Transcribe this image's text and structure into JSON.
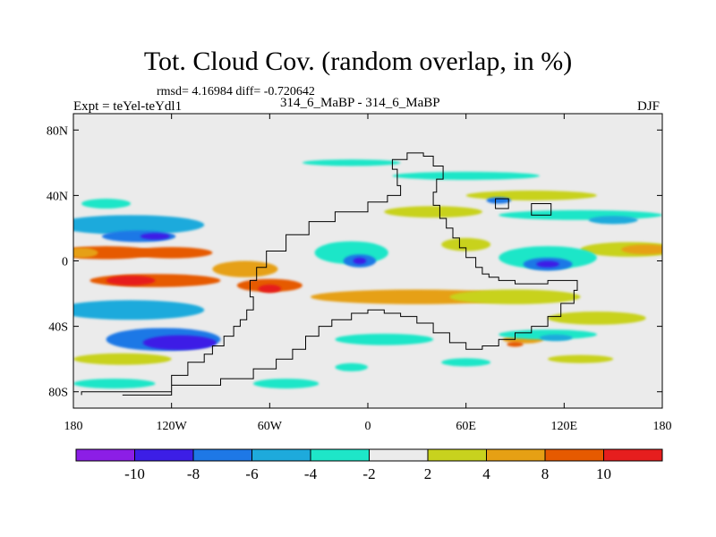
{
  "title": "Tot. Cloud Cov. (random overlap, in %)",
  "stats": "rmsd= 4.16984 diff= -0.720642",
  "left_string": "Expt = teYel-teYdl1",
  "center_string": "314_6_MaBP - 314_6_MaBP",
  "right_string": "DJF",
  "chart_data": {
    "type": "heatmap",
    "projection": "cylindrical-equidistant",
    "xlim": [
      -180,
      180
    ],
    "ylim": [
      -90,
      90
    ],
    "x_ticks": [
      -180,
      -120,
      -60,
      0,
      60,
      120,
      180
    ],
    "x_tick_labels": [
      "180",
      "120W",
      "60W",
      "0",
      "60E",
      "120E",
      "180"
    ],
    "y_ticks": [
      80,
      40,
      0,
      -40,
      -80
    ],
    "y_tick_labels": [
      "80N",
      "40N",
      "0",
      "40S",
      "80S"
    ],
    "colorbar": {
      "levels": [
        -10,
        -8,
        -6,
        -4,
        -2,
        2,
        4,
        8,
        10
      ],
      "level_labels": [
        "-10",
        "-8",
        "-6",
        "-4",
        "-2",
        "2",
        "4",
        "8",
        "10"
      ],
      "colors": [
        "#8c1ee6",
        "#3c1ee6",
        "#1e78e6",
        "#1eaadc",
        "#1ee6c8",
        "#ebebeb",
        "#c8d21e",
        "#e6a014",
        "#e65a00",
        "#e61e1e"
      ]
    },
    "features": [
      {
        "bin": 8,
        "lon": -160,
        "lat": 5,
        "w": 60,
        "h": 8
      },
      {
        "bin": 8,
        "lon": -120,
        "lat": 5,
        "w": 50,
        "h": 7
      },
      {
        "bin": 7,
        "lon": -175,
        "lat": 5,
        "w": 20,
        "h": 6
      },
      {
        "bin": 8,
        "lon": -130,
        "lat": -12,
        "w": 80,
        "h": 8
      },
      {
        "bin": 9,
        "lon": -145,
        "lat": -12,
        "w": 30,
        "h": 6
      },
      {
        "bin": 7,
        "lon": -75,
        "lat": -5,
        "w": 40,
        "h": 10
      },
      {
        "bin": 8,
        "lon": -60,
        "lat": -15,
        "w": 40,
        "h": 8
      },
      {
        "bin": 9,
        "lon": -60,
        "lat": -17,
        "w": 14,
        "h": 5
      },
      {
        "bin": 7,
        "lon": 30,
        "lat": -22,
        "w": 130,
        "h": 9
      },
      {
        "bin": 6,
        "lon": 90,
        "lat": -22,
        "w": 80,
        "h": 9
      },
      {
        "bin": 6,
        "lon": 160,
        "lat": 7,
        "w": 60,
        "h": 9
      },
      {
        "bin": 7,
        "lon": 170,
        "lat": 7,
        "w": 30,
        "h": 6
      },
      {
        "bin": 6,
        "lon": 40,
        "lat": 30,
        "w": 60,
        "h": 7
      },
      {
        "bin": 6,
        "lon": 100,
        "lat": 40,
        "w": 80,
        "h": 6
      },
      {
        "bin": 6,
        "lon": 60,
        "lat": 10,
        "w": 30,
        "h": 8
      },
      {
        "bin": 6,
        "lon": 140,
        "lat": -35,
        "w": 60,
        "h": 8
      },
      {
        "bin": 6,
        "lon": -150,
        "lat": -60,
        "w": 60,
        "h": 7
      },
      {
        "bin": 6,
        "lon": 130,
        "lat": -60,
        "w": 40,
        "h": 5
      },
      {
        "bin": 7,
        "lon": 95,
        "lat": -48,
        "w": 25,
        "h": 5
      },
      {
        "bin": 8,
        "lon": 90,
        "lat": -51,
        "w": 10,
        "h": 3
      },
      {
        "bin": 3,
        "lon": -145,
        "lat": 22,
        "w": 90,
        "h": 12
      },
      {
        "bin": 2,
        "lon": -140,
        "lat": 15,
        "w": 45,
        "h": 7
      },
      {
        "bin": 1,
        "lon": -130,
        "lat": 15,
        "w": 18,
        "h": 4
      },
      {
        "bin": 3,
        "lon": -145,
        "lat": -30,
        "w": 90,
        "h": 12
      },
      {
        "bin": 2,
        "lon": -125,
        "lat": -48,
        "w": 70,
        "h": 14
      },
      {
        "bin": 1,
        "lon": -115,
        "lat": -50,
        "w": 45,
        "h": 9
      },
      {
        "bin": 4,
        "lon": -10,
        "lat": 5,
        "w": 45,
        "h": 14
      },
      {
        "bin": 2,
        "lon": -5,
        "lat": 0,
        "w": 20,
        "h": 8
      },
      {
        "bin": 1,
        "lon": -5,
        "lat": 0,
        "w": 8,
        "h": 4
      },
      {
        "bin": 4,
        "lon": 110,
        "lat": 2,
        "w": 60,
        "h": 14
      },
      {
        "bin": 2,
        "lon": 110,
        "lat": -2,
        "w": 30,
        "h": 8
      },
      {
        "bin": 1,
        "lon": 110,
        "lat": -2,
        "w": 14,
        "h": 4
      },
      {
        "bin": 4,
        "lon": 130,
        "lat": 28,
        "w": 100,
        "h": 6
      },
      {
        "bin": 2,
        "lon": 80,
        "lat": 37,
        "w": 15,
        "h": 4
      },
      {
        "bin": 3,
        "lon": 150,
        "lat": 25,
        "w": 30,
        "h": 5
      },
      {
        "bin": 4,
        "lon": 60,
        "lat": 52,
        "w": 90,
        "h": 5
      },
      {
        "bin": 4,
        "lon": -10,
        "lat": 60,
        "w": 60,
        "h": 4
      },
      {
        "bin": 4,
        "lon": -160,
        "lat": 35,
        "w": 30,
        "h": 6
      },
      {
        "bin": 4,
        "lon": 10,
        "lat": -48,
        "w": 60,
        "h": 7
      },
      {
        "bin": 4,
        "lon": 110,
        "lat": -45,
        "w": 60,
        "h": 6
      },
      {
        "bin": 3,
        "lon": 115,
        "lat": -47,
        "w": 20,
        "h": 4
      },
      {
        "bin": 4,
        "lon": -50,
        "lat": -75,
        "w": 40,
        "h": 6
      },
      {
        "bin": 4,
        "lon": -10,
        "lat": -65,
        "w": 20,
        "h": 5
      },
      {
        "bin": 4,
        "lon": -155,
        "lat": -75,
        "w": 50,
        "h": 6
      },
      {
        "bin": 4,
        "lon": 60,
        "lat": -62,
        "w": 30,
        "h": 5
      }
    ]
  }
}
